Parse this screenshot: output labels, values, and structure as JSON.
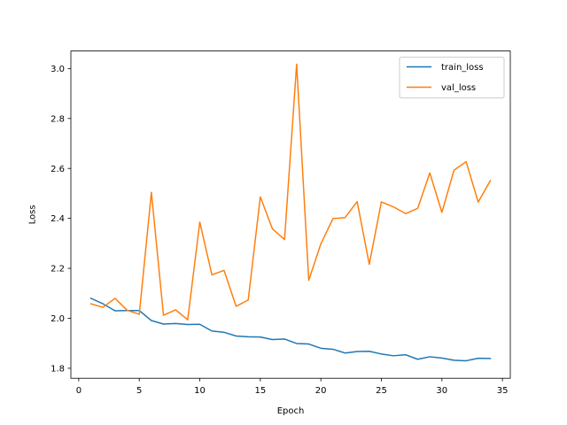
{
  "chart_data": {
    "type": "line",
    "title": "",
    "xlabel": "Epoch",
    "ylabel": "Loss",
    "xlim": [
      -0.65,
      35.65
    ],
    "ylim": [
      1.76,
      3.07
    ],
    "xticks": [
      0,
      5,
      10,
      15,
      20,
      25,
      30,
      35
    ],
    "yticks": [
      1.8,
      2.0,
      2.2,
      2.4,
      2.6,
      2.8,
      3.0
    ],
    "ytick_labels": [
      "1.8",
      "2.0",
      "2.2",
      "2.4",
      "2.6",
      "2.8",
      "3.0"
    ],
    "grid": false,
    "legend_position": "top-right",
    "x": [
      1,
      2,
      3,
      4,
      5,
      6,
      7,
      8,
      9,
      10,
      11,
      12,
      13,
      14,
      15,
      16,
      17,
      18,
      19,
      20,
      21,
      22,
      23,
      24,
      25,
      26,
      27,
      28,
      29,
      30,
      31,
      32,
      33,
      34
    ],
    "series": [
      {
        "name": "train_loss",
        "color": "#1f77b4",
        "values": [
          2.08,
          2.058,
          2.03,
          2.031,
          2.031,
          1.991,
          1.977,
          1.979,
          1.975,
          1.976,
          1.949,
          1.944,
          1.929,
          1.926,
          1.925,
          1.915,
          1.917,
          1.899,
          1.897,
          1.88,
          1.876,
          1.861,
          1.867,
          1.868,
          1.857,
          1.85,
          1.854,
          1.836,
          1.846,
          1.841,
          1.832,
          1.83,
          1.84,
          1.839
        ]
      },
      {
        "name": "val_loss",
        "color": "#ff7f0e",
        "values": [
          2.058,
          2.044,
          2.08,
          2.032,
          2.016,
          2.504,
          2.012,
          2.034,
          1.994,
          2.385,
          2.174,
          2.192,
          2.048,
          2.073,
          2.486,
          2.358,
          2.315,
          3.017,
          2.152,
          2.298,
          2.399,
          2.403,
          2.467,
          2.216,
          2.466,
          2.446,
          2.419,
          2.44,
          2.582,
          2.424,
          2.593,
          2.627,
          2.465,
          2.551
        ]
      }
    ]
  }
}
